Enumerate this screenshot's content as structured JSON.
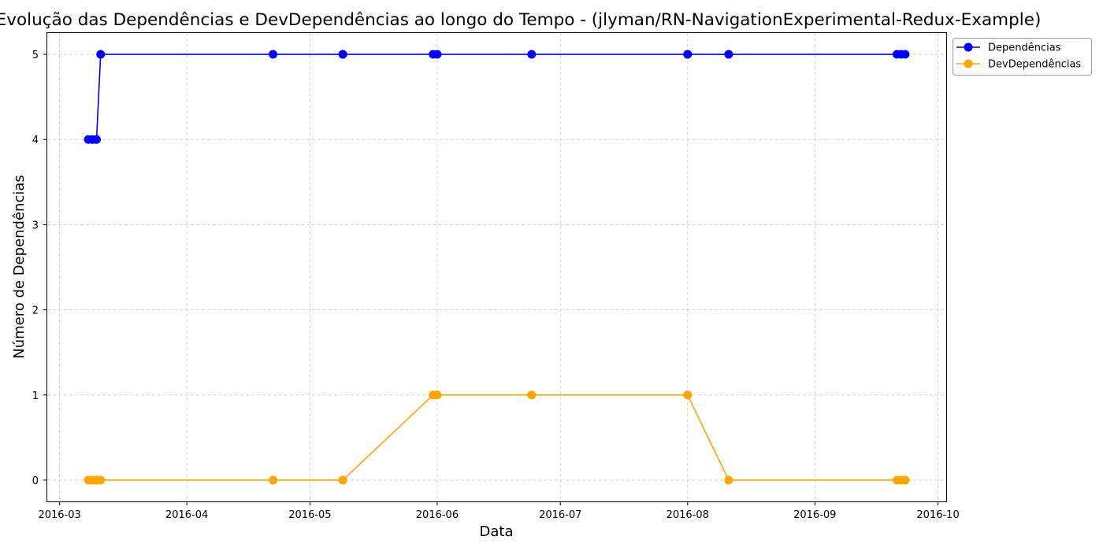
{
  "chart_data": {
    "type": "line",
    "title": "Evolução das Dependências e DevDependências ao longo do Tempo - (jlyman/RN-NavigationExperimental-Redux-Example)",
    "xlabel": "Data",
    "ylabel": "Número de Dependências",
    "xlim": [
      "2016-02-27",
      "2016-10-03"
    ],
    "ylim": [
      -0.25,
      5.25
    ],
    "x_ticks": [
      "2016-03",
      "2016-04",
      "2016-05",
      "2016-06",
      "2016-07",
      "2016-08",
      "2016-09",
      "2016-10"
    ],
    "y_ticks": [
      0,
      1,
      2,
      3,
      4,
      5
    ],
    "grid": true,
    "legend_position": "top-right, outside plot",
    "x": [
      "2016-03-08",
      "2016-03-09",
      "2016-03-10",
      "2016-03-11",
      "2016-04-22",
      "2016-05-09",
      "2016-05-09",
      "2016-05-31",
      "2016-06-01",
      "2016-06-24",
      "2016-08-01",
      "2016-08-01",
      "2016-08-11",
      "2016-09-21",
      "2016-09-22",
      "2016-09-23"
    ],
    "series": [
      {
        "name": "Dependências",
        "color": "#0000ff",
        "values": [
          4,
          4,
          4,
          5,
          5,
          5,
          5,
          5,
          5,
          5,
          5,
          5,
          5,
          5,
          5,
          5
        ]
      },
      {
        "name": "DevDependências",
        "color": "#ffa500",
        "values": [
          0,
          0,
          0,
          0,
          0,
          0,
          0,
          1,
          1,
          1,
          1,
          1,
          0,
          0,
          0,
          0
        ]
      }
    ]
  }
}
